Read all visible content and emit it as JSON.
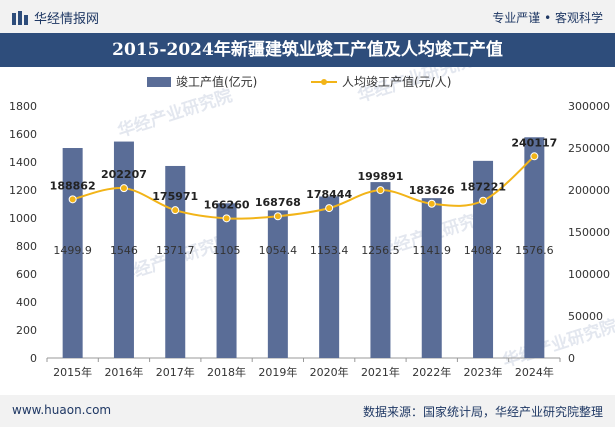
{
  "header": {
    "brand": "华经情报网",
    "tagline": "专业严谨 • 客观科学"
  },
  "title": "2015-2024年新疆建筑业竣工产值及人均竣工产值",
  "footer": {
    "site": "www.huaon.com",
    "source": "数据来源：国家统计局，华经产业研究院整理"
  },
  "watermark": "华经产业研究院",
  "colors": {
    "bar": "#5a6d97",
    "line": "#f2b418",
    "title_bg": "#2e4d7b",
    "text": "#1f3864"
  },
  "chart_data": {
    "type": "bar",
    "categories": [
      "2015年",
      "2016年",
      "2017年",
      "2018年",
      "2019年",
      "2020年",
      "2021年",
      "2022年",
      "2023年",
      "2024年"
    ],
    "series": [
      {
        "name": "竣工产值(亿元)",
        "type": "bar",
        "axis": "left",
        "values": [
          1499.9,
          1546,
          1371.7,
          1105,
          1054.4,
          1153.4,
          1256.5,
          1141.9,
          1408.2,
          1576.6
        ],
        "labels": [
          "1499.9",
          "1546",
          "1371.7",
          "1105",
          "1054.4",
          "1153.4",
          "1256.5",
          "1141.9",
          "1408.2",
          "1576.6"
        ]
      },
      {
        "name": "人均竣工产值(元/人)",
        "type": "line",
        "axis": "right",
        "values": [
          188862,
          202207,
          175971,
          166260,
          168768,
          178444,
          199891,
          183626,
          187221,
          240117
        ],
        "labels": [
          "188862",
          "202207",
          "175971",
          "166260",
          "168768",
          "178444",
          "199891",
          "183626",
          "187221",
          "240117"
        ]
      }
    ],
    "y_left": {
      "min": 0,
      "max": 1800,
      "ticks": [
        "0",
        "200",
        "400",
        "600",
        "800",
        "1000",
        "1200",
        "1400",
        "1600",
        "1800"
      ]
    },
    "y_right": {
      "min": 0,
      "max": 300000,
      "ticks": [
        "0",
        "50000",
        "100000",
        "150000",
        "200000",
        "250000",
        "300000"
      ]
    },
    "legend_position": "top-center",
    "grid": false
  }
}
